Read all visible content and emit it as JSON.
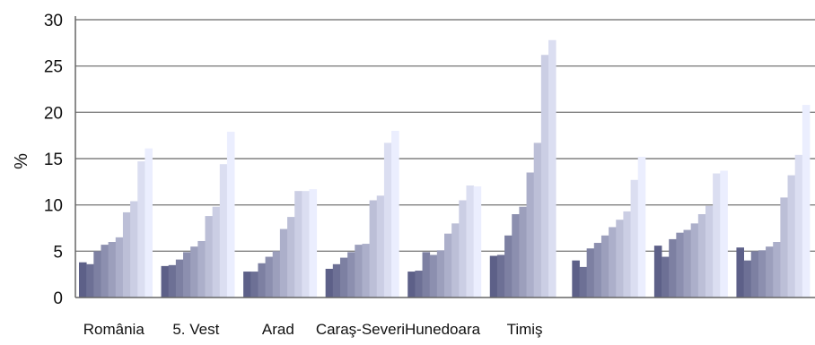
{
  "chart_data": {
    "type": "bar",
    "title": "",
    "xlabel": "",
    "ylabel": "%",
    "ylim": [
      0,
      30
    ],
    "yticks": [
      0,
      5,
      10,
      15,
      20,
      25,
      30
    ],
    "grid": true,
    "legend": "none",
    "categories": [
      "România",
      "5. Vest",
      "Arad",
      "Caraş-Severi",
      "Hunedoara",
      "Timiş",
      "",
      "",
      ""
    ],
    "series": [
      {
        "values": [
          3.8,
          3.4,
          2.8,
          3.1,
          2.8,
          4.5,
          4.0,
          5.6,
          5.4
        ]
      },
      {
        "values": [
          3.6,
          3.5,
          2.8,
          3.6,
          2.9,
          4.6,
          3.3,
          4.4,
          4.0
        ]
      },
      {
        "values": [
          5.0,
          4.1,
          3.7,
          4.3,
          4.9,
          6.7,
          5.3,
          6.3,
          5.0
        ]
      },
      {
        "values": [
          5.7,
          4.9,
          4.4,
          4.9,
          4.6,
          9.0,
          5.9,
          7.0,
          5.1
        ]
      },
      {
        "values": [
          6.0,
          5.5,
          5.0,
          5.7,
          5.1,
          9.8,
          6.7,
          7.3,
          5.5
        ]
      },
      {
        "values": [
          6.5,
          6.1,
          7.4,
          5.8,
          6.9,
          13.5,
          7.6,
          8.0,
          6.0
        ]
      },
      {
        "values": [
          9.2,
          8.8,
          8.7,
          10.5,
          8.0,
          16.7,
          8.4,
          9.0,
          10.8
        ]
      },
      {
        "values": [
          10.4,
          9.8,
          11.5,
          11.0,
          10.5,
          26.2,
          9.3,
          9.9,
          13.2
        ]
      },
      {
        "values": [
          14.7,
          14.4,
          11.5,
          16.7,
          12.1,
          27.8,
          12.7,
          13.4,
          15.4
        ]
      },
      {
        "values": [
          16.1,
          17.9,
          11.7,
          18.0,
          12.0,
          0,
          15.2,
          13.7,
          20.8
        ]
      }
    ],
    "colors": {
      "gridline": "#808080",
      "axis": "#666666",
      "bar_dark": "#5d6088",
      "bar_light": "#ebeefe"
    }
  }
}
